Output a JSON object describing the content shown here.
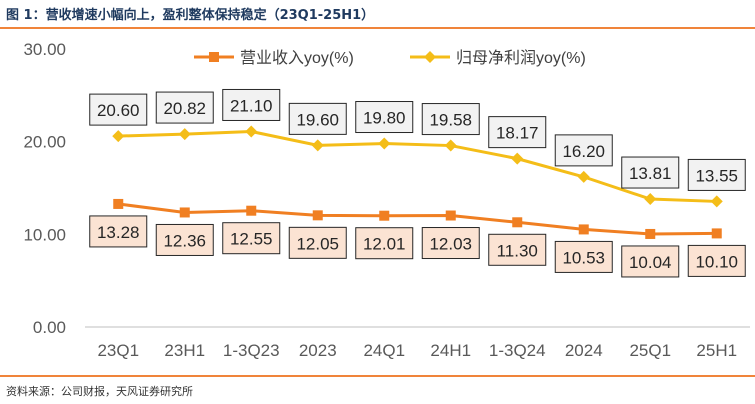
{
  "figure": {
    "title": "图 1：营收增速小幅向上，盈利整体保持稳定（23Q1-25H1）",
    "source": "资料来源：公司财报，天风证券研究所"
  },
  "colors": {
    "accent_rule": "#f0843a",
    "revenue_line": "#f07f22",
    "profit_line": "#f4bd18",
    "revenue_label_bg": "#fbe3d3",
    "profit_label_bg": "#f2f2f2",
    "title_text": "#1f3a5f"
  },
  "chart_data": {
    "type": "line",
    "categories": [
      "23Q1",
      "23H1",
      "1-3Q23",
      "2023",
      "24Q1",
      "24H1",
      "1-3Q24",
      "2024",
      "25Q1",
      "25H1"
    ],
    "ylim": [
      0,
      30
    ],
    "yticks": [
      "0.00",
      "10.00",
      "20.00",
      "30.00"
    ],
    "legend_position": "top",
    "series": [
      {
        "name": "营业收入yoy(%)",
        "marker": "square",
        "values": [
          13.28,
          12.36,
          12.55,
          12.05,
          12.01,
          12.03,
          11.3,
          10.53,
          10.04,
          10.1
        ],
        "labels": [
          "13.28",
          "12.36",
          "12.55",
          "12.05",
          "12.01",
          "12.03",
          "11.30",
          "10.53",
          "10.04",
          "10.10"
        ],
        "label_position": "below"
      },
      {
        "name": "归母净利润yoy(%)",
        "marker": "diamond",
        "values": [
          20.6,
          20.82,
          21.1,
          19.6,
          19.8,
          19.58,
          18.17,
          16.2,
          13.81,
          13.55
        ],
        "labels": [
          "20.60",
          "20.82",
          "21.10",
          "19.60",
          "19.80",
          "19.58",
          "18.17",
          "16.20",
          "13.81",
          "13.55"
        ],
        "label_position": "above"
      }
    ]
  }
}
